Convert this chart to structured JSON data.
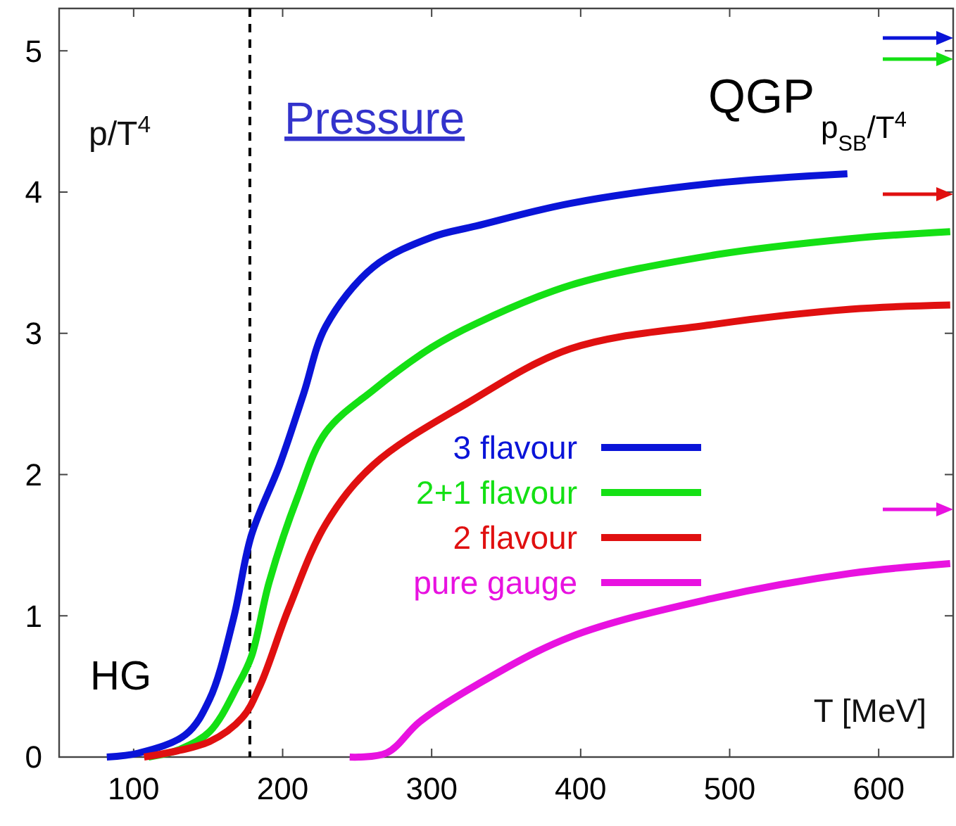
{
  "chart_data": {
    "type": "line",
    "title": "Pressure",
    "xlabel": "T [MeV]",
    "ylabel": "p/T$^{4}$",
    "annotations": [
      "QGP",
      "HG",
      "p$_{SB}$/T$^{4}$"
    ],
    "xlim": [
      50,
      650
    ],
    "xticks": [
      100,
      200,
      300,
      400,
      500,
      600
    ],
    "ylim": [
      0,
      5.3
    ],
    "yticks": [
      0,
      1,
      2,
      3,
      4,
      5
    ],
    "grid": false,
    "legend": "center",
    "marker": "none",
    "line_style": "solid",
    "ref_lines": [
      {
        "axis": "x",
        "value": 178,
        "color": "#000000",
        "line_style": "dashed"
      }
    ],
    "series": [
      {
        "name": "3 flavour",
        "color": "#0a14d8",
        "x": [
          82,
          104,
          135,
          151,
          167,
          179,
          198,
          214,
          229,
          261,
          300,
          330,
          393,
          487,
          579
        ],
        "values": [
          0,
          0.03,
          0.16,
          0.41,
          0.98,
          1.57,
          2.07,
          2.57,
          3.05,
          3.47,
          3.68,
          3.76,
          3.92,
          4.06,
          4.13
        ]
      },
      {
        "name": "2+1 flavour",
        "color": "#14e014",
        "x": [
          110,
          130,
          151,
          170,
          179,
          191,
          210,
          229,
          261,
          300,
          330,
          393,
          487,
          581,
          648
        ],
        "values": [
          0,
          0.05,
          0.18,
          0.51,
          0.71,
          1.24,
          1.84,
          2.3,
          2.6,
          2.9,
          3.07,
          3.34,
          3.55,
          3.67,
          3.72
        ]
      },
      {
        "name": "2 flavour",
        "color": "#e01010",
        "x": [
          107,
          151,
          173,
          185,
          204,
          229,
          261,
          323,
          393,
          487,
          581,
          648
        ],
        "values": [
          0,
          0.11,
          0.28,
          0.51,
          1.05,
          1.65,
          2.07,
          2.5,
          2.89,
          3.06,
          3.17,
          3.2
        ]
      },
      {
        "name": "pure gauge",
        "color": "#e812e0",
        "x": [
          245,
          270,
          292,
          330,
          393,
          487,
          581,
          648
        ],
        "values": [
          0,
          0.03,
          0.25,
          0.51,
          0.85,
          1.12,
          1.3,
          1.37
        ]
      }
    ]
  }
}
